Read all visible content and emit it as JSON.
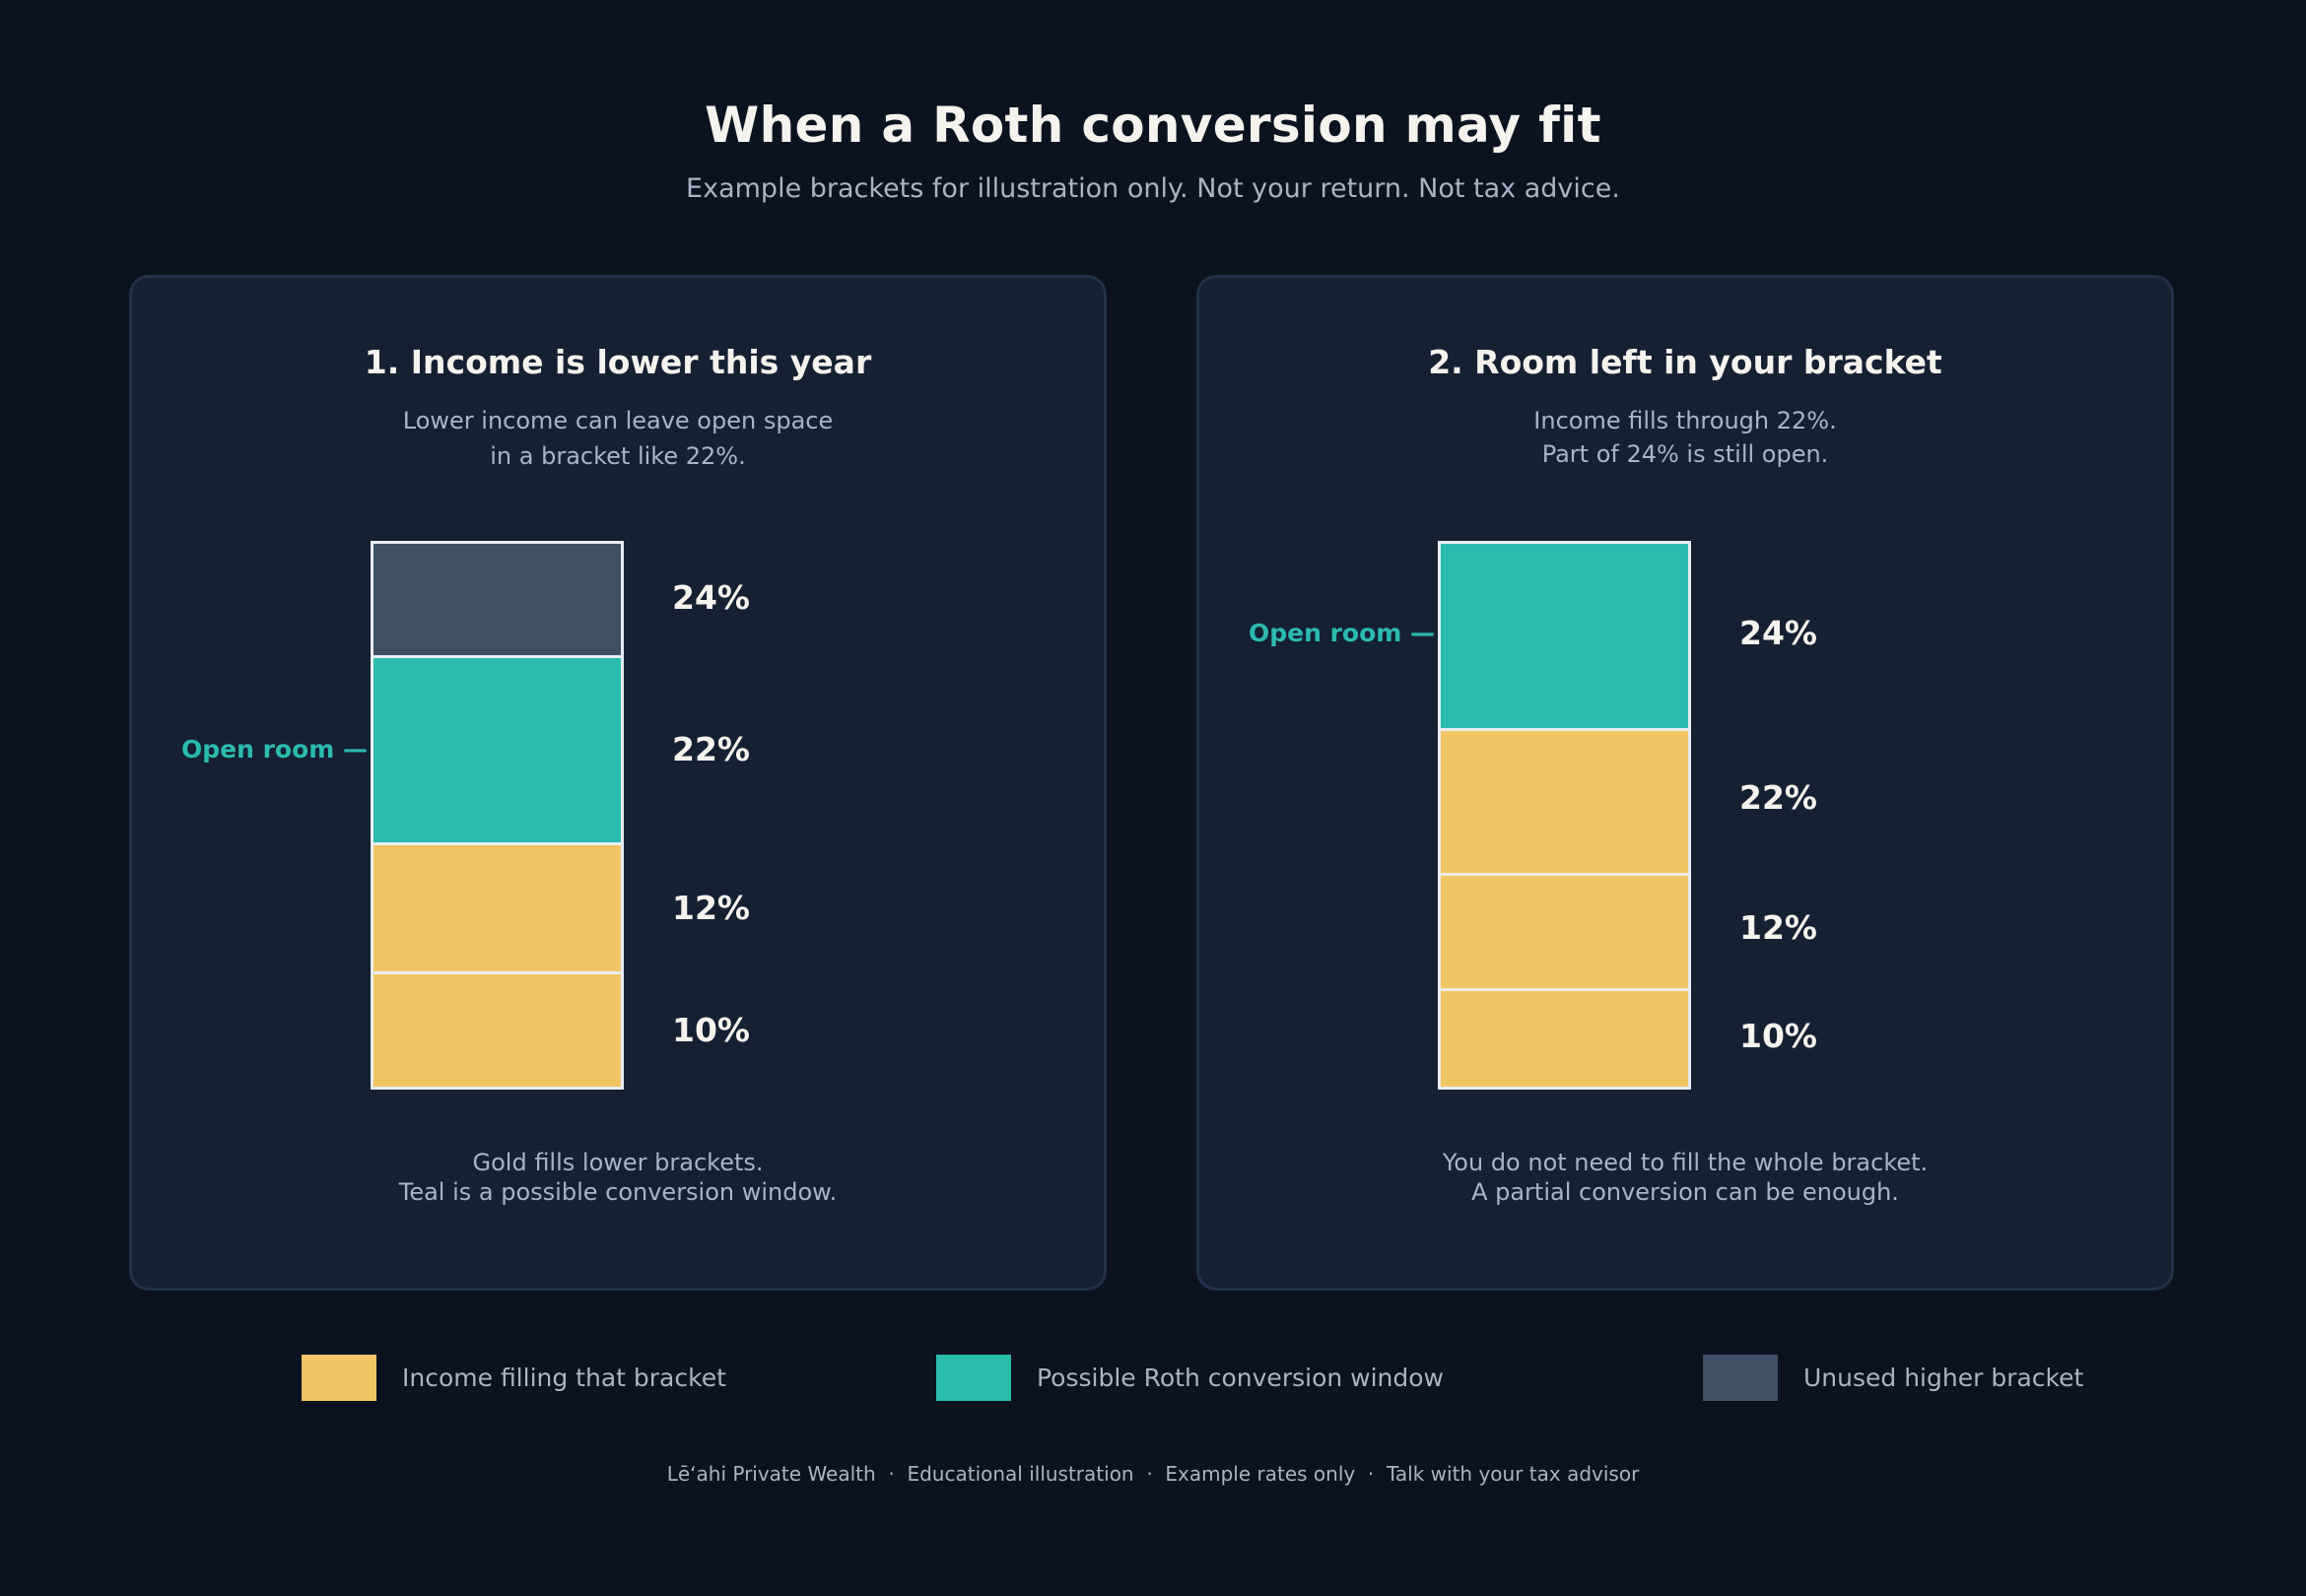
{
  "header": {
    "title": "When a Roth conversion may fit",
    "subtitle": "Example brackets for illustration only. Not your return. Not tax advice."
  },
  "colors": {
    "background": "#0b1220",
    "panel": "#152033",
    "income_gold": "#efc663",
    "conversion_teal": "#2bbbad",
    "unused_slate": "#3d5066",
    "text_light": "#f5f3ee",
    "text_muted": "#a9b4c4"
  },
  "panels": [
    {
      "title": "1. Income is lower this year",
      "desc_line1": "Lower income can leave open space",
      "desc_line2": "in a bracket like 22%.",
      "open_room_label": "Open room —",
      "foot_line1": "Gold fills lower brackets.",
      "foot_line2": "Teal is a possible conversion window.",
      "segments": [
        {
          "label": "10%",
          "type": "income"
        },
        {
          "label": "12%",
          "type": "income"
        },
        {
          "label": "22%",
          "type": "conversion"
        },
        {
          "label": "24%",
          "type": "unused"
        }
      ]
    },
    {
      "title": "2. Room left in your bracket",
      "desc_line1": "Income fills through 22%.",
      "desc_line2": "Part of 24% is still open.",
      "open_room_label": "Open room —",
      "foot_line1": "You do not need to fill the whole bracket.",
      "foot_line2": "A partial conversion can be enough.",
      "segments": [
        {
          "label": "10%",
          "type": "income"
        },
        {
          "label": "12%",
          "type": "income"
        },
        {
          "label": "22%",
          "type": "income"
        },
        {
          "label": "24%",
          "type": "conversion"
        }
      ]
    }
  ],
  "legend": [
    {
      "label": "Income filling that bracket",
      "type": "income"
    },
    {
      "label": "Possible Roth conversion window",
      "type": "conversion"
    },
    {
      "label": "Unused higher bracket",
      "type": "unused"
    }
  ],
  "footer": "Lēʻahi Private Wealth  ·  Educational illustration  ·  Example rates only  ·  Talk with your tax advisor"
}
